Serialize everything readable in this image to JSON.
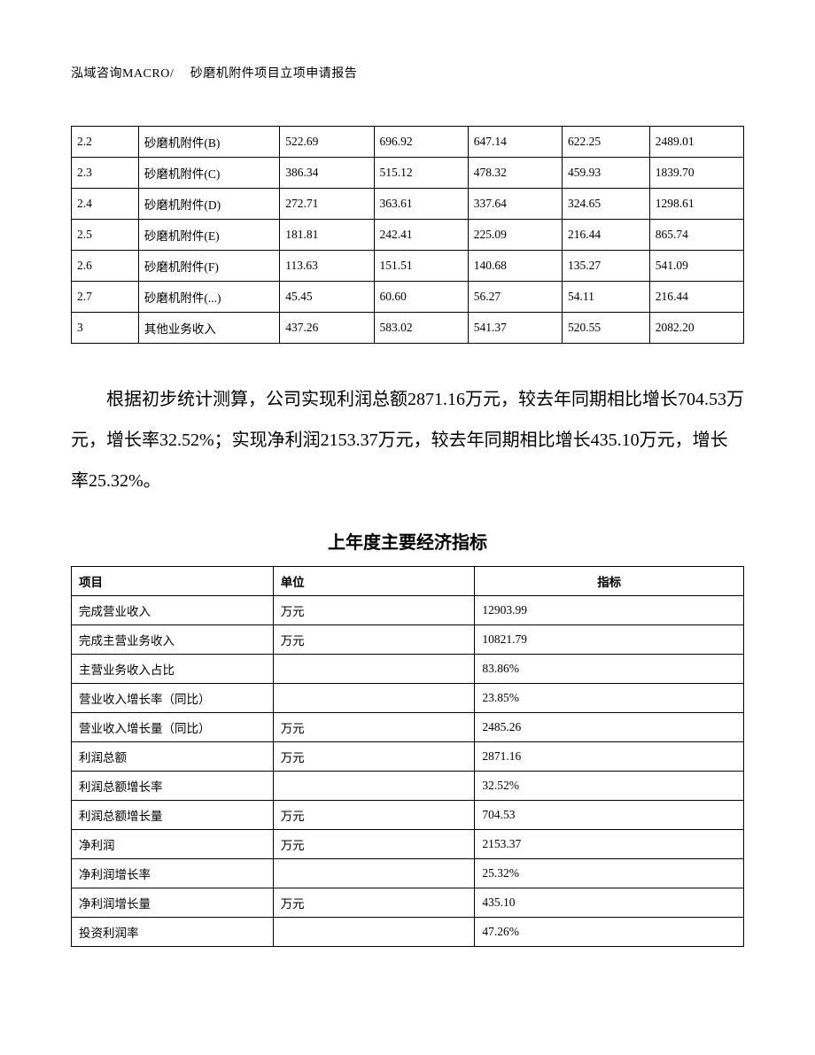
{
  "header": "泓域咨询MACRO/　 砂磨机附件项目立项申请报告",
  "table1": {
    "col_widths": [
      "10%",
      "21%",
      "14%",
      "14%",
      "14%",
      "13%",
      "14%"
    ],
    "rows": [
      [
        "2.2",
        "砂磨机附件(B)",
        "522.69",
        "696.92",
        "647.14",
        "622.25",
        "2489.01"
      ],
      [
        "2.3",
        "砂磨机附件(C)",
        "386.34",
        "515.12",
        "478.32",
        "459.93",
        "1839.70"
      ],
      [
        "2.4",
        "砂磨机附件(D)",
        "272.71",
        "363.61",
        "337.64",
        "324.65",
        "1298.61"
      ],
      [
        "2.5",
        "砂磨机附件(E)",
        "181.81",
        "242.41",
        "225.09",
        "216.44",
        "865.74"
      ],
      [
        "2.6",
        "砂磨机附件(F)",
        "113.63",
        "151.51",
        "140.68",
        "135.27",
        "541.09"
      ],
      [
        "2.7",
        "砂磨机附件(...)",
        "45.45",
        "60.60",
        "56.27",
        "54.11",
        "216.44"
      ],
      [
        "3",
        "其他业务收入",
        "437.26",
        "583.02",
        "541.37",
        "520.55",
        "2082.20"
      ]
    ]
  },
  "paragraph": "根据初步统计测算，公司实现利润总额2871.16万元，较去年同期相比增长704.53万元，增长率32.52%；实现净利润2153.37万元，较去年同期相比增长435.10万元，增长率25.32%。",
  "section_title": "上年度主要经济指标",
  "table2": {
    "col_widths": [
      "30%",
      "30%",
      "40%"
    ],
    "headers": [
      "项目",
      "单位",
      "指标"
    ],
    "rows": [
      [
        "完成营业收入",
        "万元",
        "12903.99"
      ],
      [
        "完成主营业务收入",
        "万元",
        "10821.79"
      ],
      [
        "主营业务收入占比",
        "",
        "83.86%"
      ],
      [
        "营业收入增长率（同比）",
        "",
        "23.85%"
      ],
      [
        "营业收入增长量（同比）",
        "万元",
        "2485.26"
      ],
      [
        "利润总额",
        "万元",
        "2871.16"
      ],
      [
        "利润总额增长率",
        "",
        "32.52%"
      ],
      [
        "利润总额增长量",
        "万元",
        "704.53"
      ],
      [
        "净利润",
        "万元",
        "2153.37"
      ],
      [
        "净利润增长率",
        "",
        "25.32%"
      ],
      [
        "净利润增长量",
        "万元",
        "435.10"
      ],
      [
        "投资利润率",
        "",
        "47.26%"
      ]
    ]
  }
}
